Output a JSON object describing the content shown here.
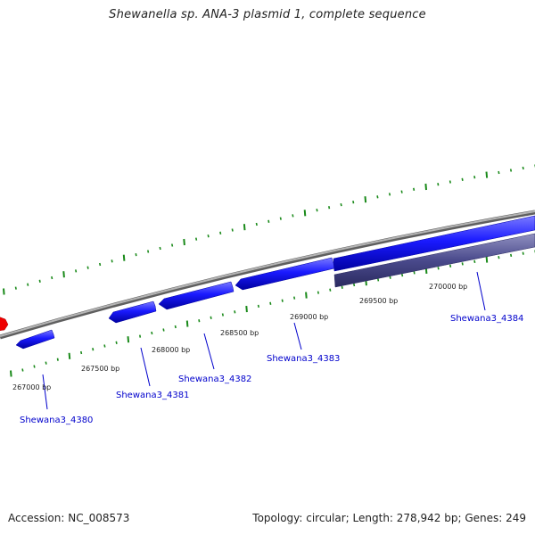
{
  "header": {
    "title": "Shewanella sp. ANA-3 plasmid 1, complete sequence"
  },
  "footer": {
    "accession": "Accession: NC_008573",
    "topology": "Topology: circular; Length: 278,942 bp; Genes: 249"
  },
  "colors": {
    "backbone": "#8a8a8a",
    "gene_forward": "#1a1aff",
    "gene_reverse": "#4a4a8c",
    "tick": "#1a8a1a",
    "label": "#0000cc",
    "marker": "#ee0000"
  },
  "scale_labels": [
    "267000 bp",
    "267500 bp",
    "268000 bp",
    "268500 bp",
    "269000 bp",
    "269500 bp",
    "270000 bp"
  ],
  "genes": [
    {
      "name": "Shewana3_4380",
      "strand": "forward"
    },
    {
      "name": "Shewana3_4381",
      "strand": "forward"
    },
    {
      "name": "Shewana3_4382",
      "strand": "forward"
    },
    {
      "name": "Shewana3_4383",
      "strand": "forward"
    },
    {
      "name": "Shewana3_4384",
      "strand": "reverse"
    }
  ]
}
